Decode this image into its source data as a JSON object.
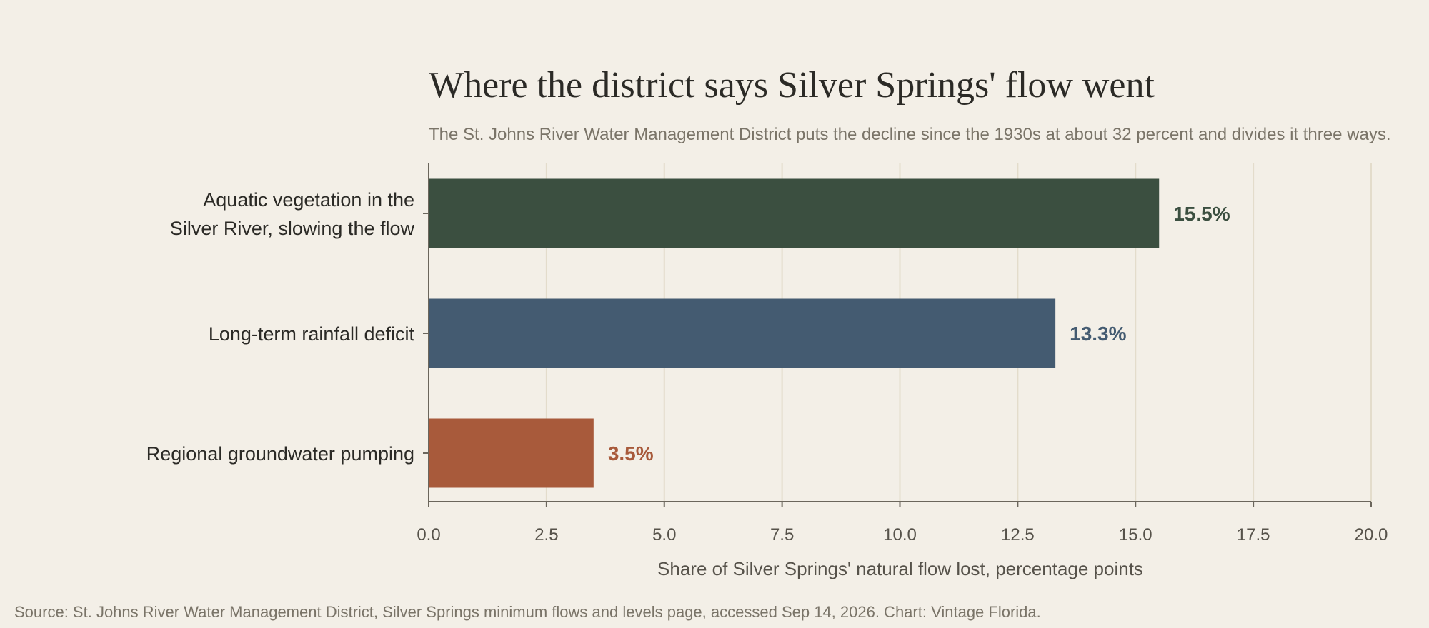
{
  "chart_data": {
    "type": "bar",
    "orientation": "horizontal",
    "title": "Where the district says Silver Springs' flow went",
    "subtitle": "The St. Johns River Water Management District puts the decline since the 1930s at about 32 percent and divides it three ways.",
    "categories": [
      [
        "Aquatic vegetation in the",
        "Silver River, slowing the flow"
      ],
      [
        "Long-term rainfall deficit"
      ],
      [
        "Regional groundwater pumping"
      ]
    ],
    "values": [
      15.5,
      13.3,
      3.5
    ],
    "value_labels": [
      "15.5%",
      "13.3%",
      "3.5%"
    ],
    "colors": [
      "#3b4f40",
      "#445b71",
      "#a85a3b"
    ],
    "xlabel": "Share of Silver Springs' natural flow lost, percentage points",
    "xlim": [
      0,
      20
    ],
    "xticks": [
      0.0,
      2.5,
      5.0,
      7.5,
      10.0,
      12.5,
      15.0,
      17.5,
      20.0
    ],
    "xtick_labels": [
      "0.0",
      "2.5",
      "5.0",
      "7.5",
      "10.0",
      "12.5",
      "15.0",
      "17.5",
      "20.0"
    ],
    "grid": "vertical",
    "legend": "none",
    "source": "Source: St. Johns River Water Management District, Silver Springs minimum flows and levels page, accessed Sep 14, 2026. Chart: Vintage Florida."
  },
  "colors": {
    "background": "#f3efe7",
    "grid": "#e3dccb",
    "axis": "#6b665c",
    "text": "#2b2a26",
    "muted": "#7a7468"
  }
}
